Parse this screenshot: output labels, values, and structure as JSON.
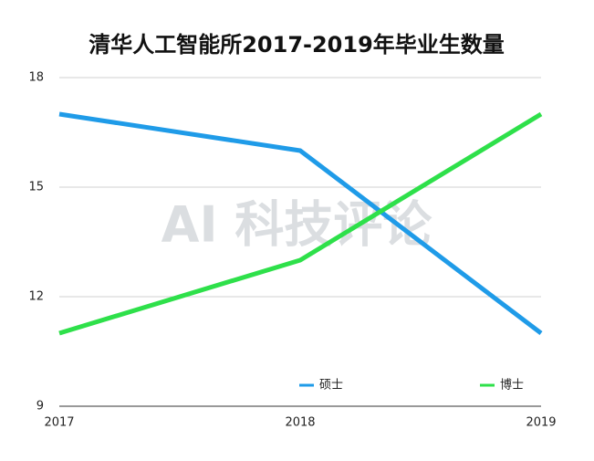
{
  "chart_data": {
    "type": "line",
    "title": "清华人工智能所2017-2019年毕业生数量",
    "watermark": "AI 科技评论",
    "categories": [
      "2017",
      "2018",
      "2019"
    ],
    "series": [
      {
        "name": "硕士",
        "color": "#1f9be8",
        "values": [
          17,
          16,
          11
        ]
      },
      {
        "name": "博士",
        "color": "#2ee04a",
        "values": [
          11,
          13,
          17
        ]
      }
    ],
    "ylim": [
      9,
      18
    ],
    "yticks": [
      9,
      12,
      15,
      18
    ],
    "grid": true,
    "legend": "bottom"
  }
}
